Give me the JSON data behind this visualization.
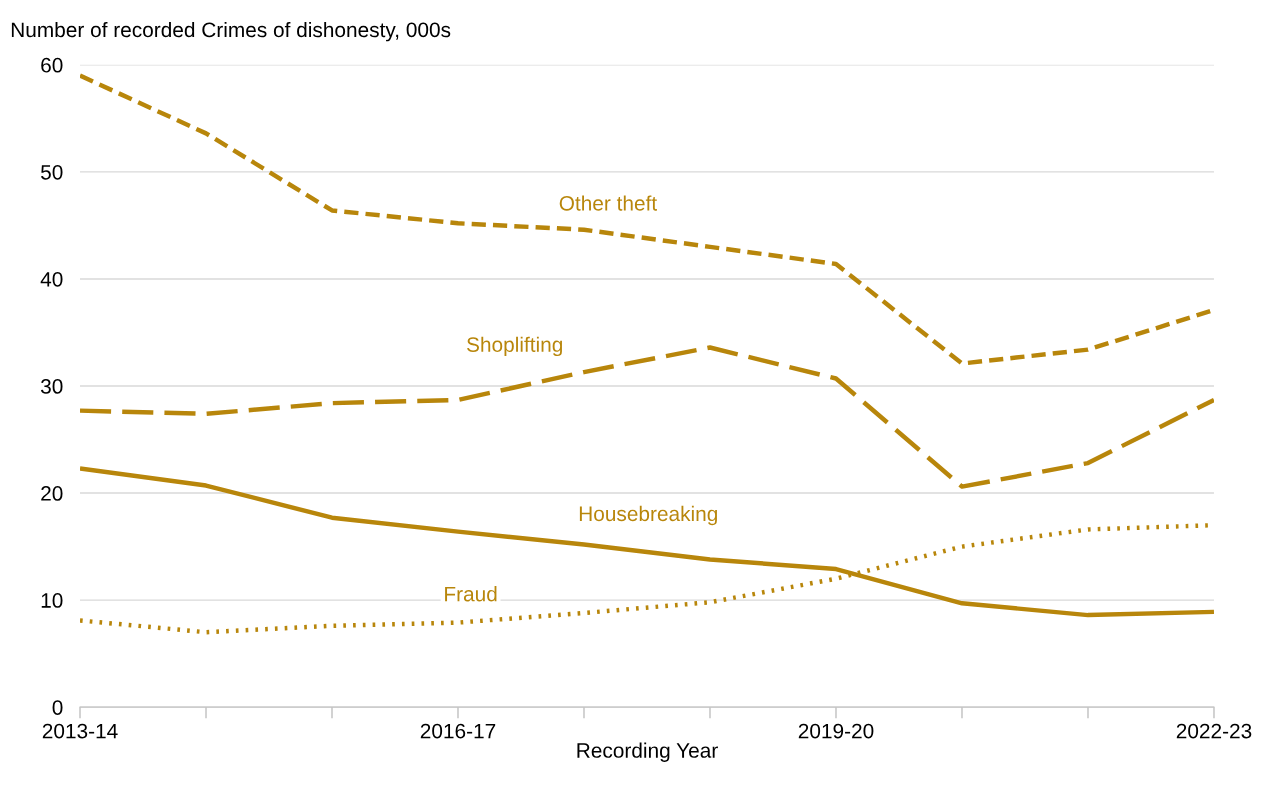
{
  "chart_data": {
    "type": "line",
    "ylabel": "Number of recorded Crimes of dishonesty, 000s",
    "xlabel": "Recording Year",
    "categories": [
      "2013-14",
      null,
      null,
      "2016-17",
      null,
      null,
      "2019-20",
      null,
      null,
      "2022-23"
    ],
    "ylim": [
      0,
      60
    ],
    "yticks": [
      0,
      10,
      20,
      30,
      40,
      50,
      60
    ],
    "grid": "y",
    "legend": false,
    "series": [
      {
        "name": "Other theft",
        "color": "#b8860b",
        "line_style": "dashed",
        "values": [
          59.0,
          53.6,
          46.4,
          45.2,
          44.6,
          43.0,
          41.4,
          32.1,
          33.4,
          37.1
        ]
      },
      {
        "name": "Shoplifting",
        "color": "#b8860b",
        "line_style": "dashed",
        "values": [
          27.7,
          27.4,
          28.4,
          28.7,
          31.3,
          33.6,
          30.7,
          20.6,
          22.8,
          28.7
        ]
      },
      {
        "name": "Housebreaking",
        "color": "#b8860b",
        "line_style": "solid",
        "values": [
          22.3,
          20.7,
          17.7,
          16.4,
          15.2,
          13.8,
          12.9,
          9.7,
          8.6,
          8.9
        ]
      },
      {
        "name": "Fraud",
        "color": "#b8860b",
        "line_style": "dotted",
        "values": [
          8.1,
          7.0,
          7.6,
          7.9,
          8.8,
          9.8,
          12.0,
          15.0,
          16.6,
          17.0
        ]
      }
    ]
  }
}
